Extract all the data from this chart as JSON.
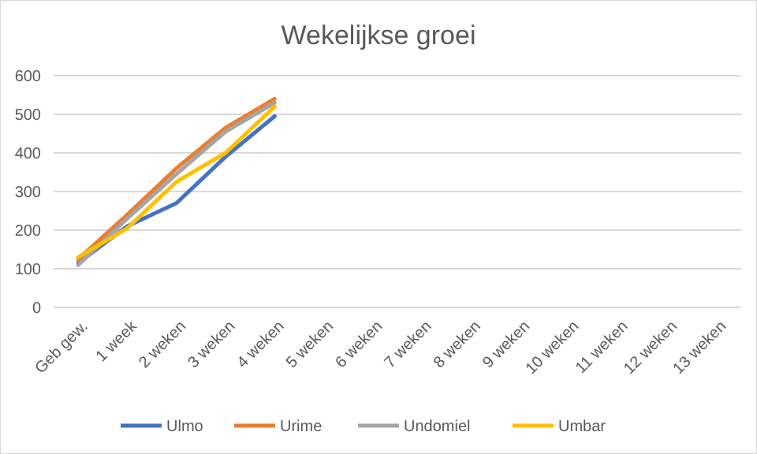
{
  "chart_data": {
    "type": "line",
    "title": "Wekelijkse groei",
    "categories": [
      "Geb gew.",
      "1 week",
      "2 weken",
      "3 weken",
      "4 weken",
      "5 weken",
      "6 weken",
      "7 weken",
      "8 weken",
      "9 weken",
      "10 weken",
      "11 weken",
      "12 weken",
      "13 weken"
    ],
    "series": [
      {
        "name": "Ulmo",
        "color": "#4472c4",
        "values": [
          115,
          210,
          270,
          390,
          495,
          null,
          null,
          null,
          null,
          null,
          null,
          null,
          null,
          null
        ]
      },
      {
        "name": "Urime",
        "color": "#ed7d31",
        "values": [
          125,
          240,
          360,
          465,
          540,
          null,
          null,
          null,
          null,
          null,
          null,
          null,
          null,
          null
        ]
      },
      {
        "name": "Undomiel",
        "color": "#a5a5a5",
        "values": [
          110,
          230,
          345,
          455,
          530,
          null,
          null,
          null,
          null,
          null,
          null,
          null,
          null,
          null
        ]
      },
      {
        "name": "Umbar",
        "color": "#ffc000",
        "values": [
          130,
          205,
          325,
          400,
          520,
          null,
          null,
          null,
          null,
          null,
          null,
          null,
          null,
          null
        ]
      }
    ],
    "ylim": [
      0,
      600
    ],
    "yticks": [
      0,
      100,
      200,
      300,
      400,
      500,
      600
    ],
    "grid": "y",
    "legend": "bottom",
    "marker": "none",
    "line_style": "solid"
  }
}
